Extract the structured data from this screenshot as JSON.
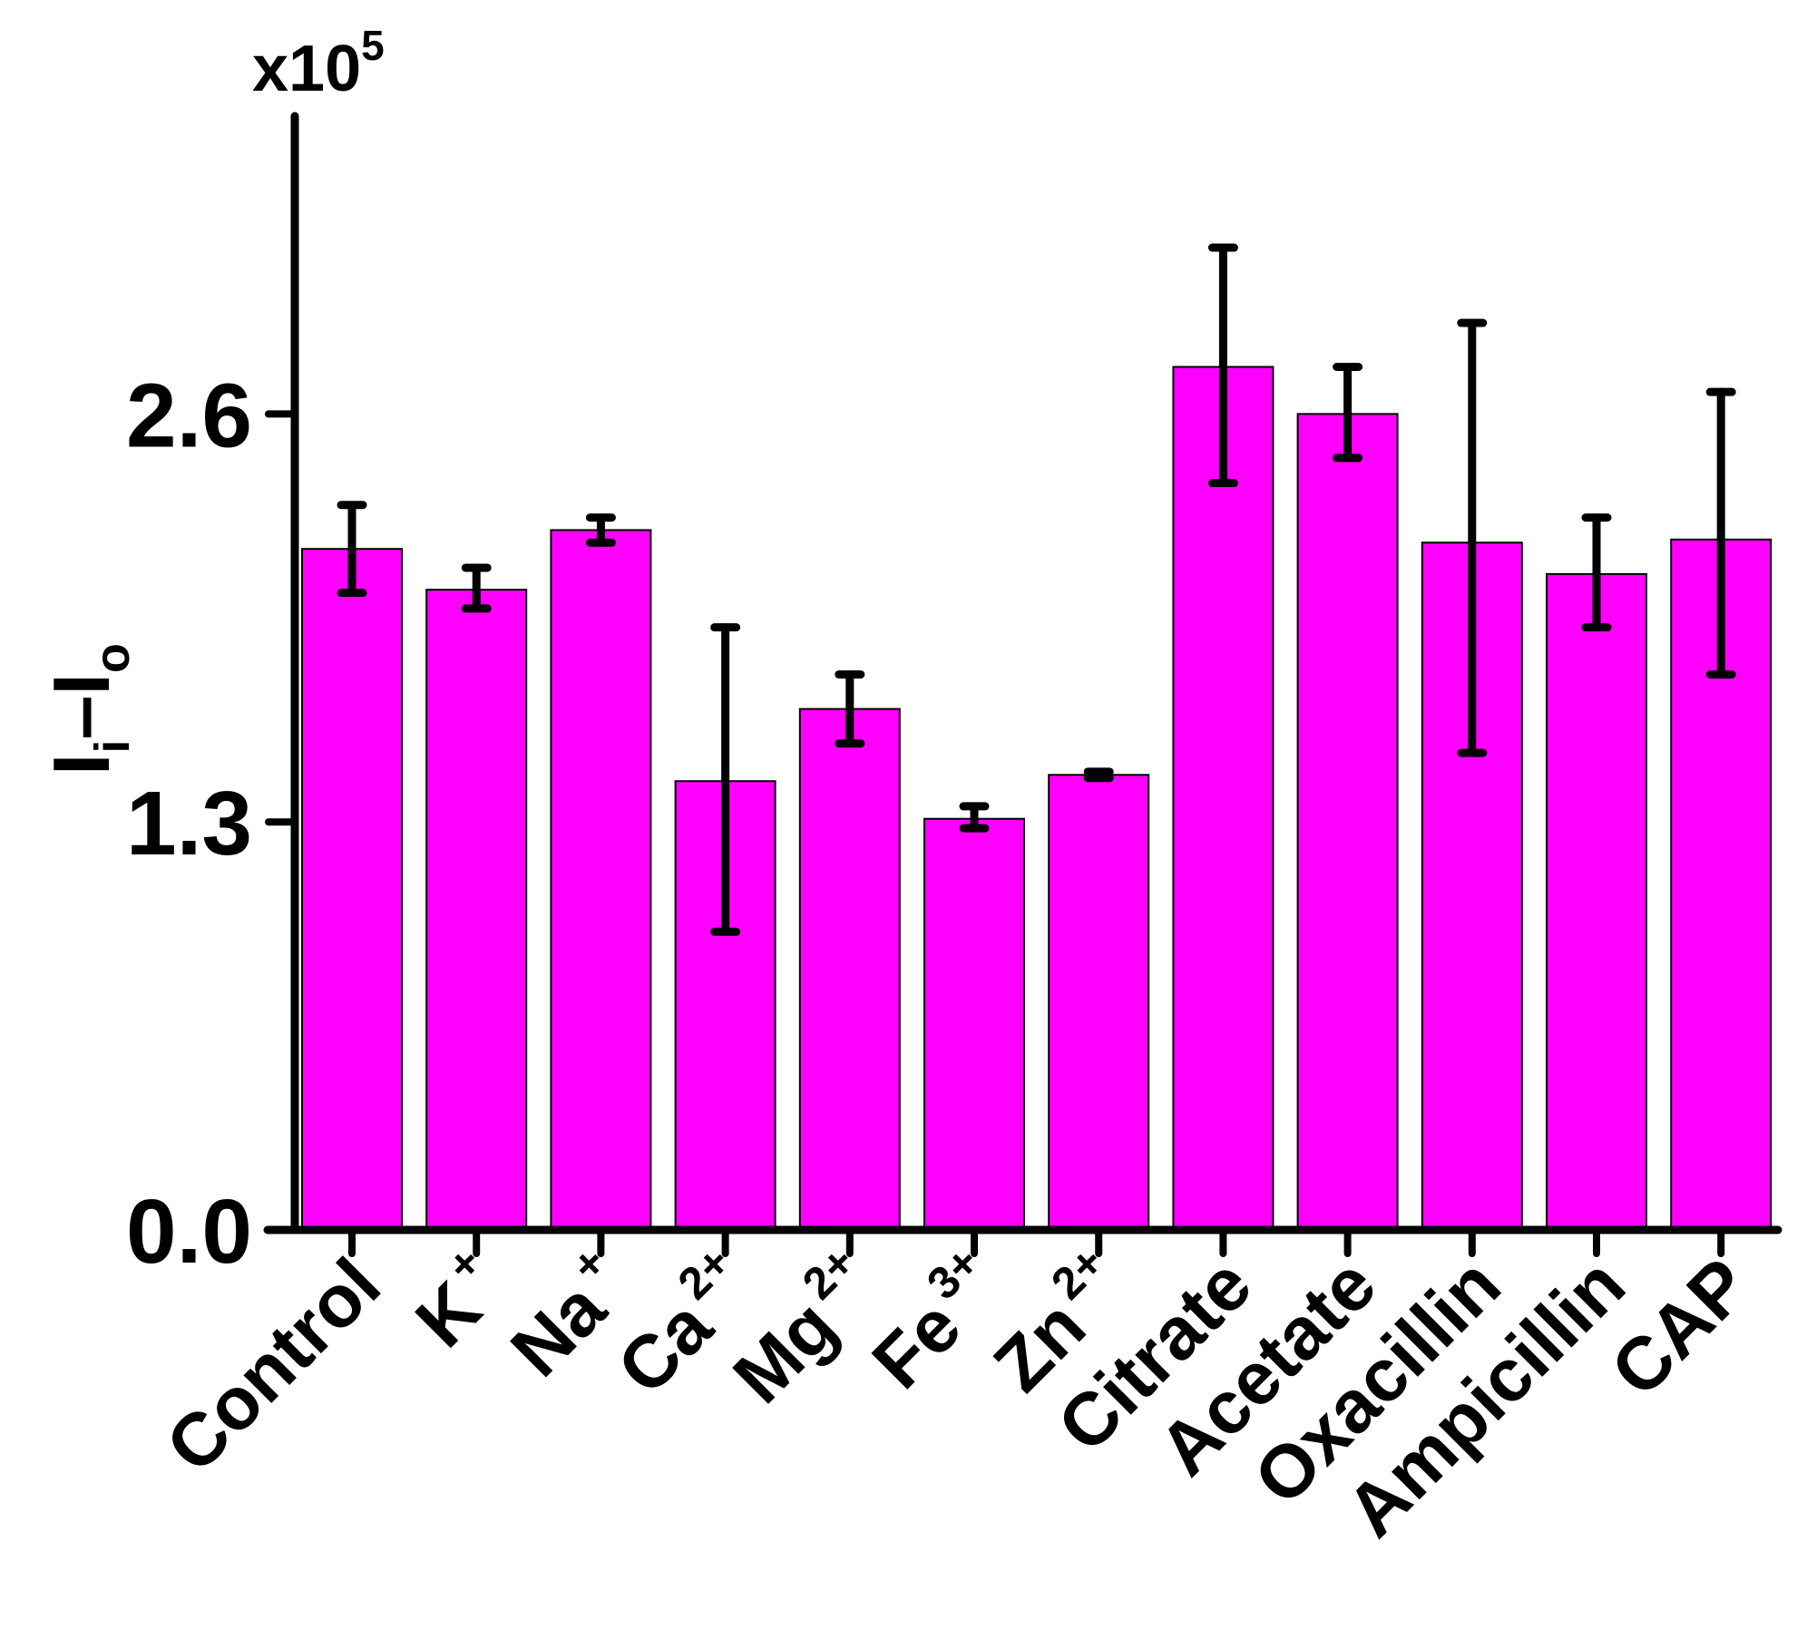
{
  "chart_data": {
    "type": "bar",
    "title": "",
    "xlabel": "",
    "ylabel": "I_i–I_o",
    "ylabel_parts": {
      "main1": "I",
      "sub1": "i",
      "dash": "–",
      "main2": "I",
      "sub2": "o"
    },
    "y_multiplier": {
      "base": "x10",
      "exponent": "5"
    },
    "ylim": [
      0,
      3.5
    ],
    "yticks": [
      0.0,
      1.3,
      2.6
    ],
    "ytick_labels": [
      "0.0",
      "1.3",
      "2.6"
    ],
    "categories": [
      {
        "base": "Control",
        "sup": ""
      },
      {
        "base": "K",
        "sup": "+"
      },
      {
        "base": "Na",
        "sup": "+"
      },
      {
        "base": "Ca",
        "sup": "2+"
      },
      {
        "base": "Mg",
        "sup": "2+"
      },
      {
        "base": "Fe",
        "sup": "3+"
      },
      {
        "base": "Zn",
        "sup": "2+"
      },
      {
        "base": "Citrate",
        "sup": ""
      },
      {
        "base": "Acetate",
        "sup": ""
      },
      {
        "base": "Oxacillin",
        "sup": ""
      },
      {
        "base": "Ampicillin",
        "sup": ""
      },
      {
        "base": "CAP",
        "sup": ""
      }
    ],
    "values": [
      2.17,
      2.04,
      2.23,
      1.43,
      1.66,
      1.31,
      1.45,
      2.75,
      2.6,
      2.19,
      2.09,
      2.2
    ],
    "error_low": [
      2.03,
      1.98,
      2.19,
      0.95,
      1.55,
      1.28,
      1.44,
      2.38,
      2.46,
      1.52,
      1.92,
      1.77
    ],
    "error_high": [
      2.31,
      2.11,
      2.27,
      1.92,
      1.77,
      1.35,
      1.46,
      3.13,
      2.75,
      2.89,
      2.27,
      2.67
    ],
    "bar_color": "#ff00ff",
    "grid": false,
    "legend": "none"
  }
}
